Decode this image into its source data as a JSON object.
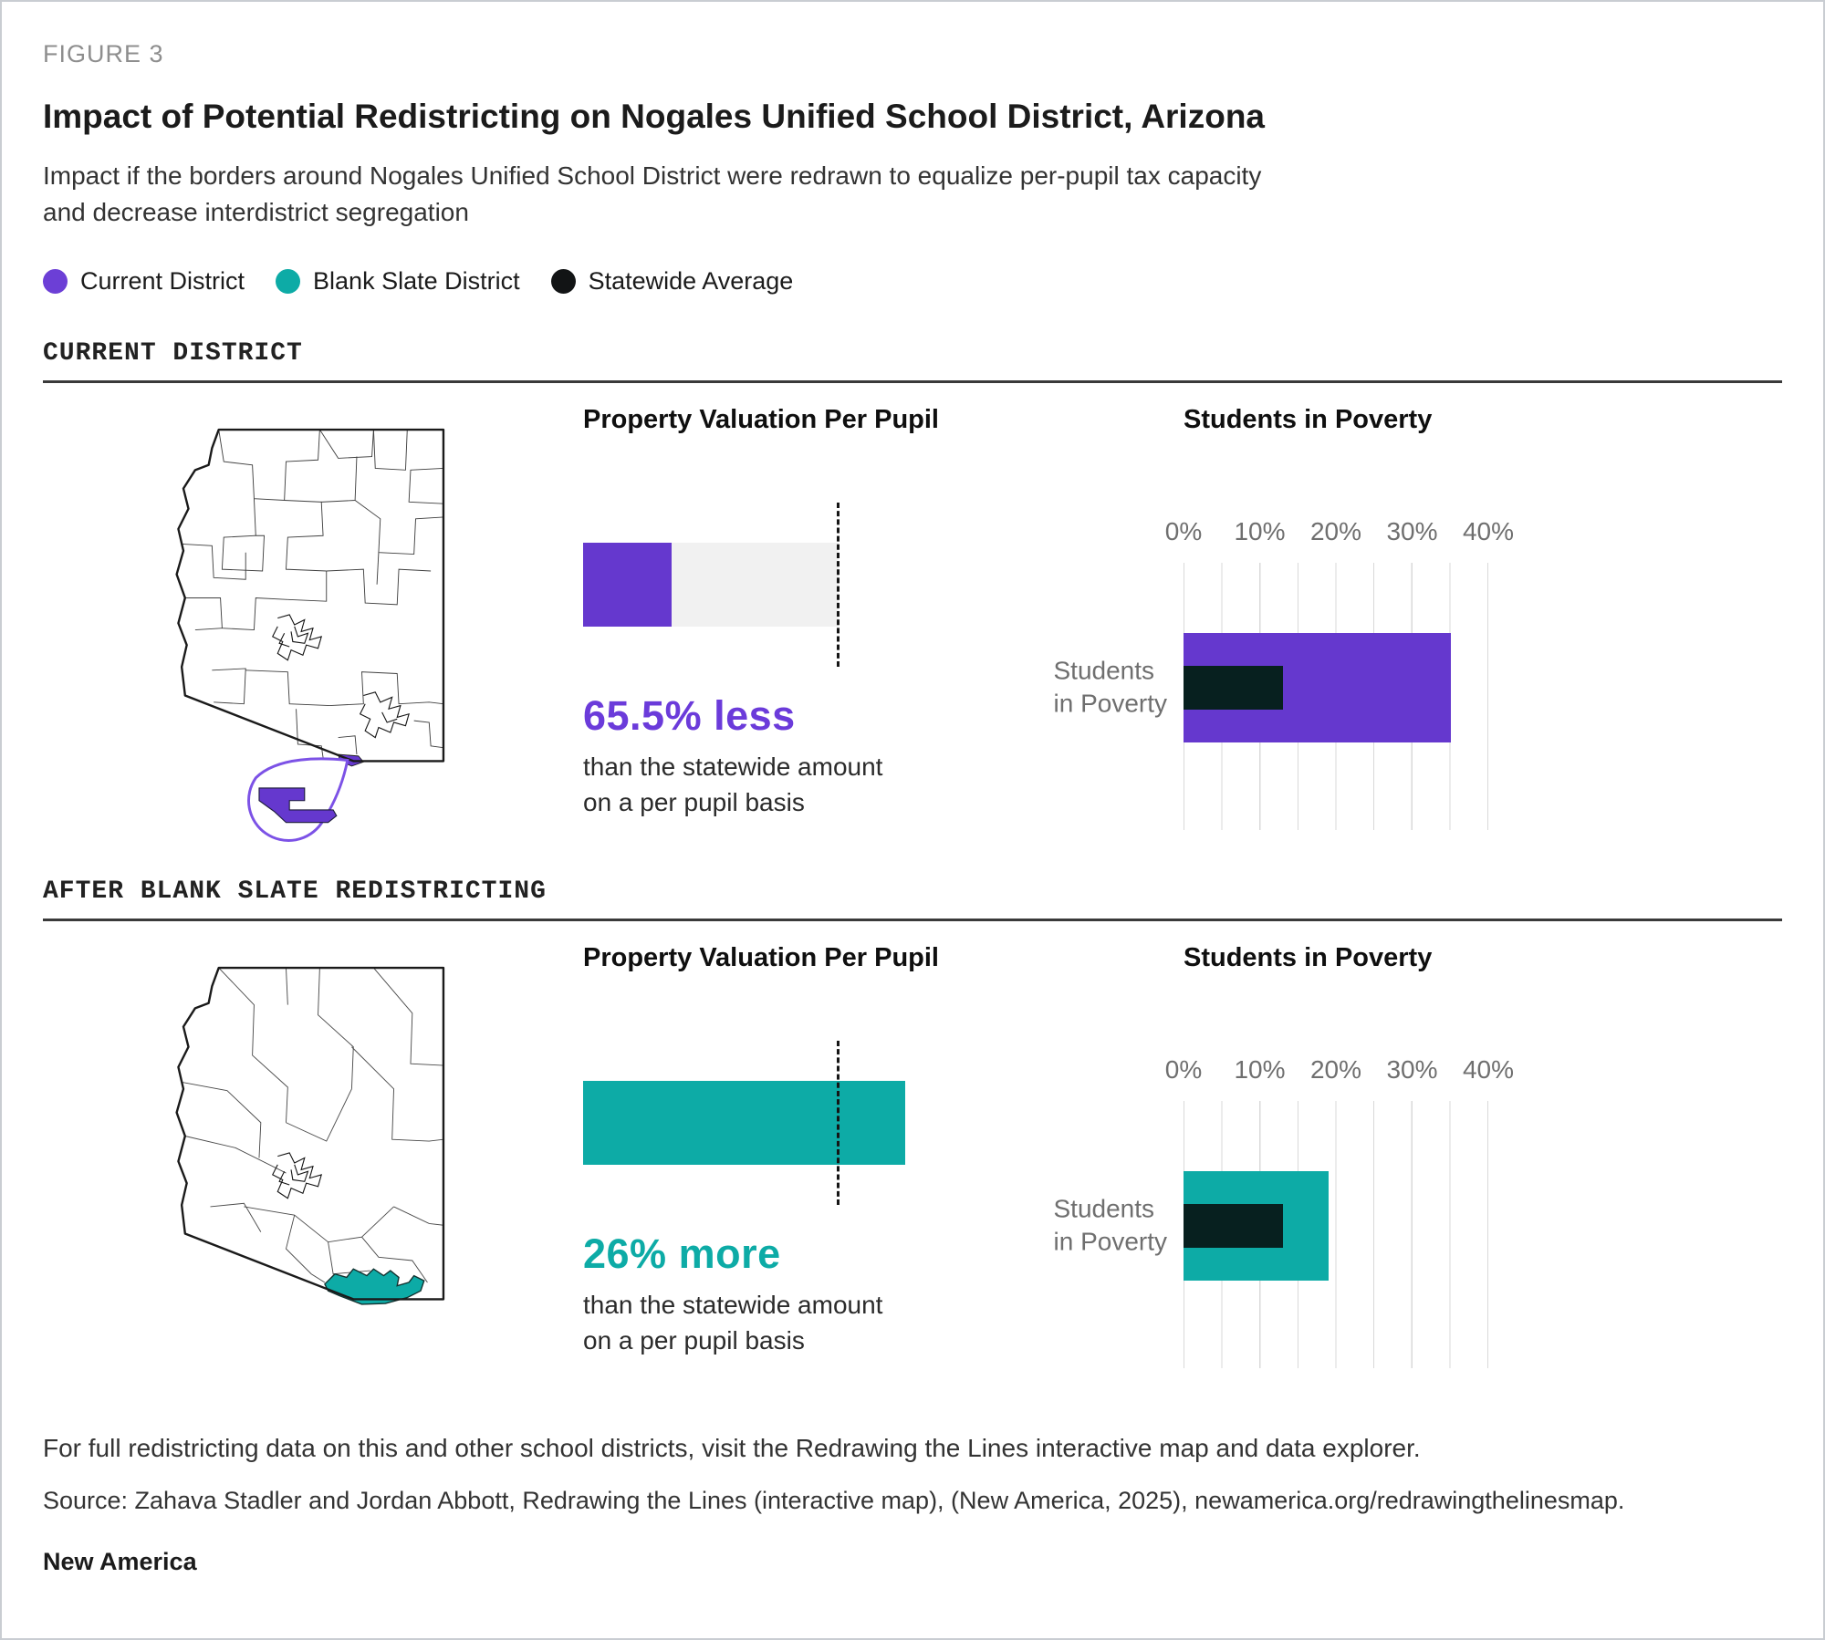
{
  "page": {
    "figure_label": "FIGURE 3",
    "title": "Impact of Potential Redistricting on Nogales Unified School District, Arizona",
    "subtitle": "Impact if the borders around Nogales Unified School District were redrawn to equalize per-pupil tax capacity and decrease interdistrict segregation"
  },
  "legend": [
    {
      "label": "Current District",
      "color": "#6C3FD6"
    },
    {
      "label": "Blank Slate District",
      "color": "#0DABA6"
    },
    {
      "label": "Statewide Average",
      "color": "#121415"
    }
  ],
  "colors": {
    "statewide_bar": "#07201F",
    "grid_line": "#D9D9D9",
    "track": "#F1F1F1",
    "reference_line": "#151515",
    "callout_stroke": "#7C52E6"
  },
  "sections": [
    {
      "header": "CURRENT DISTRICT",
      "bar_color": "#6538CE",
      "stat_color": "#6B3BDA",
      "property_valuation": {
        "title": "Property Valuation Per Pupil",
        "stat": "65.5% less",
        "note_line1": "than the statewide amount",
        "note_line2": "on a per pupil basis",
        "district_pct_of_statewide": 34.5,
        "statewide_reference_pct": 100
      },
      "students_in_poverty": {
        "title": "Students in Poverty",
        "row_label_line1": "Students",
        "row_label_line2": "in Poverty",
        "district_value_pct": 35,
        "statewide_value_pct": 13,
        "axis_max_pct": 40,
        "ticks": [
          "0%",
          "10%",
          "20%",
          "30%",
          "40%"
        ]
      }
    },
    {
      "header": "AFTER BLANK SLATE REDISTRICTING",
      "bar_color": "#0DABA6",
      "stat_color": "#0DABA6",
      "property_valuation": {
        "title": "Property Valuation Per Pupil",
        "stat": "26% more",
        "note_line1": "than the statewide amount",
        "note_line2": "on a per pupil basis",
        "district_pct_of_statewide": 126,
        "statewide_reference_pct": 100
      },
      "students_in_poverty": {
        "title": "Students in Poverty",
        "row_label_line1": "Students",
        "row_label_line2": "in Poverty",
        "district_value_pct": 19,
        "statewide_value_pct": 13,
        "axis_max_pct": 40,
        "ticks": [
          "0%",
          "10%",
          "20%",
          "30%",
          "40%"
        ]
      }
    }
  ],
  "footer": {
    "note": "For full redistricting data on this and other school districts, visit the Redrawing the Lines interactive map and data explorer.",
    "source": "Source: Zahava Stadler and Jordan Abbott, Redrawing the Lines (interactive map), (New America, 2025), newamerica.org/redrawingthelinesmap.",
    "brand": "New America"
  },
  "chart_data": [
    {
      "type": "bullet",
      "section": "Current District",
      "title": "Property Valuation Per Pupil",
      "district_value_pct_of_statewide": 34.5,
      "statewide_reference_pct": 100,
      "annotation": "65.5% less than the statewide amount on a per pupil basis",
      "bar_color": "#6538CE"
    },
    {
      "type": "bar",
      "section": "Current District",
      "title": "Students in Poverty",
      "categories": [
        "Students in Poverty"
      ],
      "series": [
        {
          "name": "Current District",
          "values": [
            35
          ],
          "color": "#6538CE"
        },
        {
          "name": "Statewide Average",
          "values": [
            13
          ],
          "color": "#07201F"
        }
      ],
      "xlabel_ticks": [
        "0%",
        "10%",
        "20%",
        "30%",
        "40%"
      ],
      "xlim": [
        0,
        40
      ],
      "unit": "percent",
      "grid": true,
      "orientation": "horizontal"
    },
    {
      "type": "bullet",
      "section": "After Blank Slate Redistricting",
      "title": "Property Valuation Per Pupil",
      "district_value_pct_of_statewide": 126,
      "statewide_reference_pct": 100,
      "annotation": "26% more than the statewide amount on a per pupil basis",
      "bar_color": "#0DABA6"
    },
    {
      "type": "bar",
      "section": "After Blank Slate Redistricting",
      "title": "Students in Poverty",
      "categories": [
        "Students in Poverty"
      ],
      "series": [
        {
          "name": "Blank Slate District",
          "values": [
            19
          ],
          "color": "#0DABA6"
        },
        {
          "name": "Statewide Average",
          "values": [
            13
          ],
          "color": "#07201F"
        }
      ],
      "xlabel_ticks": [
        "0%",
        "10%",
        "20%",
        "30%",
        "40%"
      ],
      "xlim": [
        0,
        40
      ],
      "unit": "percent",
      "grid": true,
      "orientation": "horizontal"
    }
  ]
}
